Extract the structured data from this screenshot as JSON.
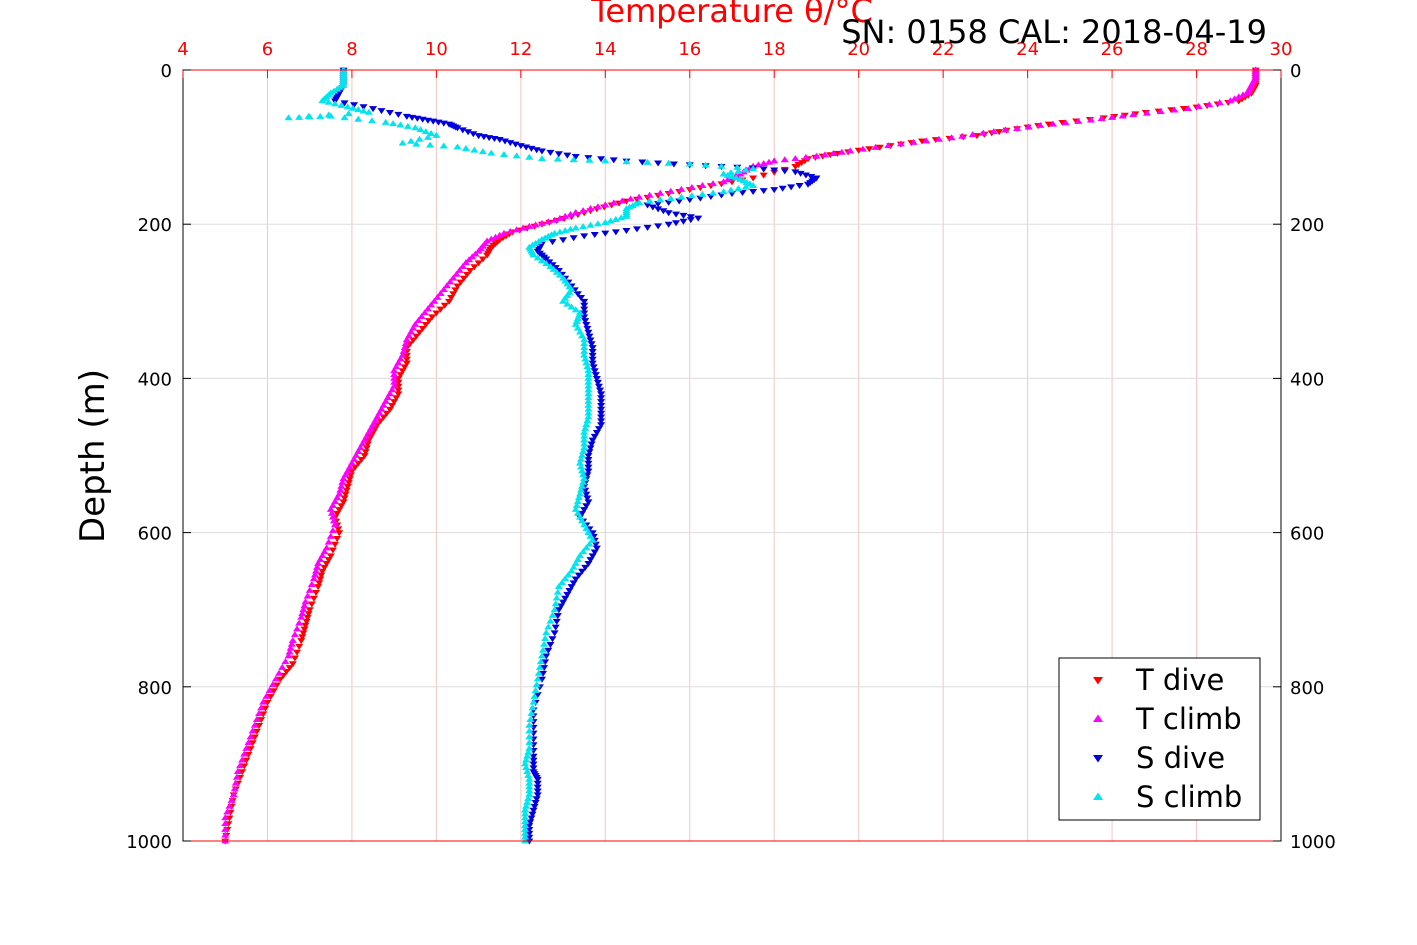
{
  "chart_data": {
    "type": "scatter",
    "title": "Temperature θ/°C",
    "annotation": "SN: 0158  CAL: 2018-04-19",
    "xlabel": "Temperature θ/°C",
    "ylabel": "Depth (m)",
    "xlim": [
      4,
      30
    ],
    "ylim": [
      0,
      1000
    ],
    "y_inverted": true,
    "x_ticks": [
      "4",
      "6",
      "8",
      "10",
      "12",
      "14",
      "16",
      "18",
      "20",
      "22",
      "24",
      "26",
      "28",
      "30"
    ],
    "y_ticks": [
      "0",
      "200",
      "400",
      "600",
      "800",
      "1000"
    ],
    "grid": true,
    "legend_position": "bottom-right",
    "colors": {
      "top_axis": "#ff0000",
      "grid_vertical": "#f2c6c6",
      "grid_horizontal": "#dddddd",
      "axis": "#000000"
    },
    "series": [
      {
        "name": "T dive",
        "marker": "triangle-down",
        "color": "#ff0000",
        "points": [
          [
            29.4,
            0
          ],
          [
            29.4,
            10
          ],
          [
            29.4,
            20
          ],
          [
            29.3,
            30
          ],
          [
            29.0,
            40
          ],
          [
            28.0,
            48
          ],
          [
            26.8,
            55
          ],
          [
            25.8,
            62
          ],
          [
            24.5,
            70
          ],
          [
            23.5,
            78
          ],
          [
            22.8,
            85
          ],
          [
            21.5,
            92
          ],
          [
            20.5,
            100
          ],
          [
            19.5,
            108
          ],
          [
            18.8,
            115
          ],
          [
            18.5,
            125
          ],
          [
            17.5,
            140
          ],
          [
            16.5,
            150
          ],
          [
            15.5,
            160
          ],
          [
            14.5,
            170
          ],
          [
            13.8,
            180
          ],
          [
            13.2,
            190
          ],
          [
            12.5,
            200
          ],
          [
            11.8,
            210
          ],
          [
            11.5,
            220
          ],
          [
            11.3,
            230
          ],
          [
            11.2,
            240
          ],
          [
            10.8,
            260
          ],
          [
            10.5,
            280
          ],
          [
            10.3,
            300
          ],
          [
            9.9,
            320
          ],
          [
            9.6,
            340
          ],
          [
            9.3,
            360
          ],
          [
            9.3,
            380
          ],
          [
            9.1,
            400
          ],
          [
            9.1,
            420
          ],
          [
            8.9,
            440
          ],
          [
            8.6,
            460
          ],
          [
            8.4,
            480
          ],
          [
            8.3,
            500
          ],
          [
            8.0,
            520
          ],
          [
            7.9,
            540
          ],
          [
            7.8,
            560
          ],
          [
            7.6,
            580
          ],
          [
            7.7,
            600
          ],
          [
            7.5,
            630
          ],
          [
            7.3,
            650
          ],
          [
            7.2,
            670
          ],
          [
            7.0,
            700
          ],
          [
            6.9,
            720
          ],
          [
            6.8,
            740
          ],
          [
            6.6,
            770
          ],
          [
            6.3,
            790
          ],
          [
            6.0,
            820
          ],
          [
            5.8,
            850
          ],
          [
            5.6,
            880
          ],
          [
            5.4,
            910
          ],
          [
            5.2,
            940
          ],
          [
            5.1,
            970
          ],
          [
            5.0,
            1000
          ]
        ]
      },
      {
        "name": "T climb",
        "marker": "triangle-up",
        "color": "#ff00ff",
        "points": [
          [
            29.4,
            0
          ],
          [
            29.4,
            10
          ],
          [
            29.3,
            20
          ],
          [
            29.2,
            30
          ],
          [
            28.8,
            40
          ],
          [
            27.8,
            50
          ],
          [
            26.5,
            58
          ],
          [
            25.5,
            65
          ],
          [
            24.3,
            72
          ],
          [
            23.2,
            80
          ],
          [
            22.2,
            88
          ],
          [
            21.0,
            96
          ],
          [
            19.8,
            105
          ],
          [
            19.0,
            112
          ],
          [
            18.0,
            118
          ],
          [
            17.5,
            125
          ],
          [
            17.2,
            135
          ],
          [
            16.8,
            145
          ],
          [
            15.8,
            155
          ],
          [
            14.8,
            165
          ],
          [
            14.0,
            175
          ],
          [
            13.3,
            185
          ],
          [
            12.8,
            195
          ],
          [
            12.2,
            203
          ],
          [
            11.6,
            212
          ],
          [
            11.2,
            222
          ],
          [
            11.0,
            235
          ],
          [
            10.7,
            250
          ],
          [
            10.4,
            270
          ],
          [
            10.1,
            290
          ],
          [
            9.8,
            310
          ],
          [
            9.5,
            330
          ],
          [
            9.3,
            350
          ],
          [
            9.2,
            370
          ],
          [
            9.0,
            390
          ],
          [
            9.0,
            410
          ],
          [
            8.8,
            430
          ],
          [
            8.6,
            450
          ],
          [
            8.4,
            470
          ],
          [
            8.2,
            490
          ],
          [
            8.0,
            510
          ],
          [
            7.8,
            530
          ],
          [
            7.7,
            550
          ],
          [
            7.5,
            570
          ],
          [
            7.6,
            590
          ],
          [
            7.4,
            620
          ],
          [
            7.2,
            640
          ],
          [
            7.1,
            660
          ],
          [
            6.9,
            690
          ],
          [
            6.8,
            710
          ],
          [
            6.6,
            740
          ],
          [
            6.5,
            760
          ],
          [
            6.2,
            790
          ],
          [
            5.9,
            820
          ],
          [
            5.7,
            850
          ],
          [
            5.5,
            880
          ],
          [
            5.3,
            910
          ],
          [
            5.2,
            940
          ],
          [
            5.0,
            970
          ],
          [
            5.0,
            1000
          ]
        ]
      },
      {
        "name": "S dive",
        "marker": "triangle-down",
        "color": "#0000dd",
        "points": [
          [
            7.8,
            0
          ],
          [
            7.8,
            10
          ],
          [
            7.8,
            20
          ],
          [
            7.7,
            30
          ],
          [
            7.6,
            40
          ],
          [
            8.5,
            50
          ],
          [
            9.3,
            60
          ],
          [
            9.8,
            65
          ],
          [
            10.3,
            70
          ],
          [
            10.5,
            75
          ],
          [
            11.0,
            85
          ],
          [
            11.5,
            90
          ],
          [
            12.0,
            98
          ],
          [
            12.5,
            105
          ],
          [
            13.3,
            112
          ],
          [
            14.5,
            118
          ],
          [
            16.0,
            123
          ],
          [
            17.5,
            127
          ],
          [
            18.5,
            132
          ],
          [
            19.0,
            140
          ],
          [
            18.8,
            148
          ],
          [
            18.0,
            155
          ],
          [
            17.0,
            160
          ],
          [
            16.0,
            168
          ],
          [
            15.0,
            175
          ],
          [
            15.5,
            185
          ],
          [
            16.2,
            192
          ],
          [
            15.5,
            200
          ],
          [
            14.5,
            208
          ],
          [
            13.5,
            215
          ],
          [
            12.5,
            225
          ],
          [
            12.4,
            235
          ],
          [
            12.6,
            245
          ],
          [
            12.9,
            260
          ],
          [
            13.2,
            280
          ],
          [
            13.5,
            300
          ],
          [
            13.5,
            320
          ],
          [
            13.6,
            340
          ],
          [
            13.7,
            360
          ],
          [
            13.7,
            380
          ],
          [
            13.8,
            400
          ],
          [
            13.9,
            420
          ],
          [
            13.9,
            440
          ],
          [
            13.9,
            460
          ],
          [
            13.7,
            480
          ],
          [
            13.6,
            500
          ],
          [
            13.6,
            520
          ],
          [
            13.5,
            540
          ],
          [
            13.6,
            560
          ],
          [
            13.4,
            580
          ],
          [
            13.7,
            600
          ],
          [
            13.8,
            620
          ],
          [
            13.6,
            640
          ],
          [
            13.3,
            660
          ],
          [
            13.1,
            680
          ],
          [
            12.9,
            700
          ],
          [
            12.8,
            730
          ],
          [
            12.6,
            760
          ],
          [
            12.5,
            790
          ],
          [
            12.3,
            830
          ],
          [
            12.3,
            860
          ],
          [
            12.3,
            890
          ],
          [
            12.3,
            910
          ],
          [
            12.4,
            920
          ],
          [
            12.4,
            940
          ],
          [
            12.3,
            960
          ],
          [
            12.2,
            980
          ],
          [
            12.2,
            1000
          ]
        ]
      },
      {
        "name": "S climb",
        "marker": "triangle-up",
        "color": "#00e5ee",
        "points": [
          [
            7.8,
            0
          ],
          [
            7.8,
            10
          ],
          [
            7.8,
            20
          ],
          [
            7.5,
            30
          ],
          [
            7.3,
            40
          ],
          [
            7.9,
            48
          ],
          [
            8.4,
            55
          ],
          [
            6.5,
            62
          ],
          [
            7.5,
            60
          ],
          [
            8.8,
            68
          ],
          [
            9.5,
            75
          ],
          [
            10.0,
            85
          ],
          [
            9.2,
            95
          ],
          [
            10.5,
            100
          ],
          [
            11.3,
            108
          ],
          [
            12.5,
            115
          ],
          [
            14.0,
            118
          ],
          [
            16.0,
            122
          ],
          [
            17.5,
            128
          ],
          [
            16.8,
            135
          ],
          [
            17.2,
            142
          ],
          [
            17.5,
            150
          ],
          [
            16.8,
            158
          ],
          [
            15.8,
            165
          ],
          [
            14.8,
            172
          ],
          [
            14.5,
            180
          ],
          [
            14.5,
            190
          ],
          [
            14.0,
            198
          ],
          [
            13.3,
            205
          ],
          [
            12.8,
            212
          ],
          [
            12.5,
            220
          ],
          [
            12.2,
            230
          ],
          [
            12.3,
            240
          ],
          [
            12.7,
            255
          ],
          [
            13.0,
            270
          ],
          [
            13.2,
            285
          ],
          [
            13.0,
            300
          ],
          [
            13.4,
            315
          ],
          [
            13.3,
            330
          ],
          [
            13.5,
            350
          ],
          [
            13.5,
            370
          ],
          [
            13.6,
            390
          ],
          [
            13.6,
            410
          ],
          [
            13.6,
            430
          ],
          [
            13.6,
            450
          ],
          [
            13.5,
            470
          ],
          [
            13.5,
            490
          ],
          [
            13.4,
            510
          ],
          [
            13.5,
            530
          ],
          [
            13.4,
            550
          ],
          [
            13.3,
            570
          ],
          [
            13.5,
            590
          ],
          [
            13.7,
            610
          ],
          [
            13.4,
            630
          ],
          [
            13.2,
            650
          ],
          [
            12.9,
            670
          ],
          [
            12.8,
            700
          ],
          [
            12.6,
            730
          ],
          [
            12.5,
            760
          ],
          [
            12.4,
            790
          ],
          [
            12.3,
            820
          ],
          [
            12.2,
            850
          ],
          [
            12.2,
            880
          ],
          [
            12.1,
            900
          ],
          [
            12.2,
            920
          ],
          [
            12.2,
            940
          ],
          [
            12.1,
            960
          ],
          [
            12.1,
            980
          ],
          [
            12.1,
            1000
          ]
        ]
      }
    ]
  }
}
